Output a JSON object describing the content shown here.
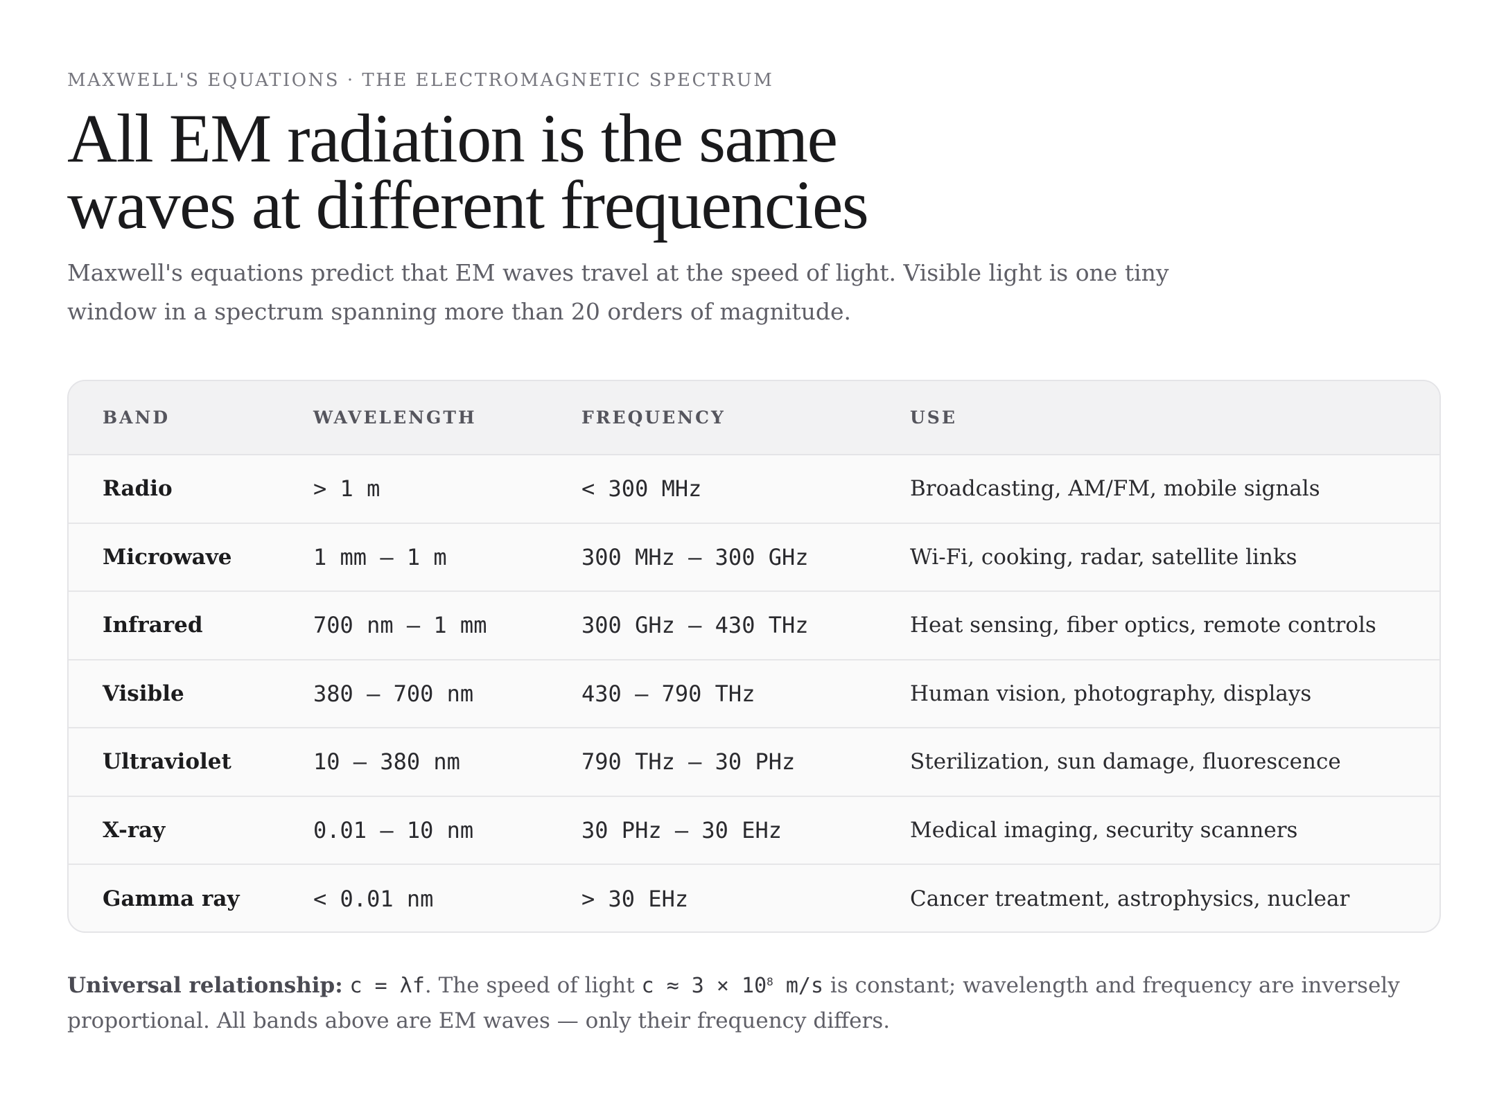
{
  "eyebrow": "MAXWELL'S EQUATIONS · THE ELECTROMAGNETIC SPECTRUM",
  "title_line1": "All EM radiation is the same",
  "title_line2": "waves at different frequencies",
  "subtitle": "Maxwell's equations predict that EM waves travel at the speed of light. Visible light is one tiny window in a spectrum spanning more than 20 orders of magnitude.",
  "table": {
    "headers": [
      "BAND",
      "WAVELENGTH",
      "FREQUENCY",
      "USE"
    ],
    "rows": [
      {
        "band": "Radio",
        "wavelength": "> 1 m",
        "frequency": "< 300 MHz",
        "use": "Broadcasting, AM/FM, mobile signals"
      },
      {
        "band": "Microwave",
        "wavelength": "1 mm – 1 m",
        "frequency": "300 MHz – 300 GHz",
        "use": "Wi-Fi, cooking, radar, satellite links"
      },
      {
        "band": "Infrared",
        "wavelength": "700 nm – 1 mm",
        "frequency": "300 GHz – 430 THz",
        "use": "Heat sensing, fiber optics, remote controls"
      },
      {
        "band": "Visible",
        "wavelength": "380 – 700 nm",
        "frequency": "430 – 790 THz",
        "use": "Human vision, photography, displays"
      },
      {
        "band": "Ultraviolet",
        "wavelength": "10 – 380 nm",
        "frequency": "790 THz – 30 PHz",
        "use": "Sterilization, sun damage, fluorescence"
      },
      {
        "band": "X-ray",
        "wavelength": "0.01 – 10 nm",
        "frequency": "30 PHz – 30 EHz",
        "use": "Medical imaging, security scanners"
      },
      {
        "band": "Gamma ray",
        "wavelength": "< 0.01 nm",
        "frequency": "> 30 EHz",
        "use": "Cancer treatment, astrophysics, nuclear"
      }
    ]
  },
  "footnote": {
    "label": "Universal relationship:",
    "formula": "c = λf",
    "text1": ". The speed of light ",
    "speed_base": "c ≈ 3 × 10",
    "speed_exp": "8",
    "speed_unit": " m/s",
    "text2": " is constant; wavelength and frequency are inversely proportional. All bands above are EM waves — only their frequency differs."
  }
}
